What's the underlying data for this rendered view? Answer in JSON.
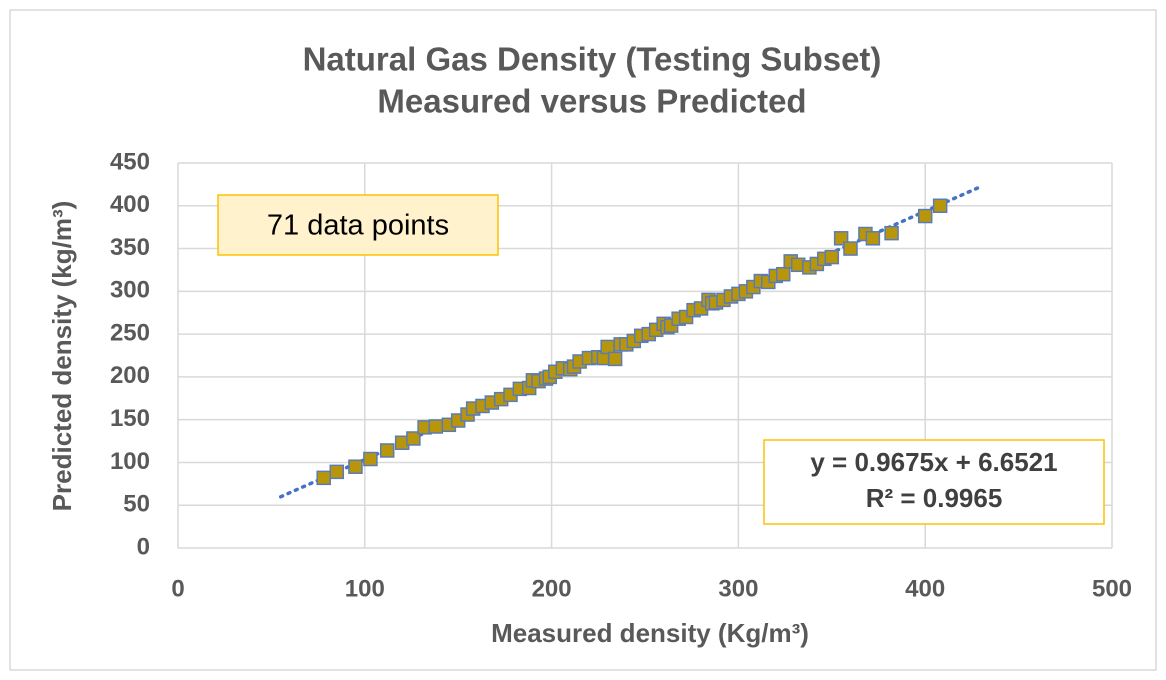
{
  "chart_data": {
    "type": "scatter",
    "title": [
      "Natural Gas Density (Testing Subset)",
      "Measured versus Predicted"
    ],
    "x_label": "Measured density (Kg/m³)",
    "y_label": "Predicted density (kg/m³)",
    "annotations": [
      "71 data points",
      "y = 0.9675x + 6.6521",
      "R² = 0.9965"
    ],
    "xlim": [
      0,
      500
    ],
    "xticks": [
      0,
      100,
      200,
      300,
      400,
      500
    ],
    "ylim": [
      0,
      450
    ],
    "yticks": [
      0,
      50,
      100,
      150,
      200,
      250,
      300,
      350,
      400,
      450
    ],
    "grid": true,
    "series": [
      {
        "color": "#b8960c",
        "edge_color": "#5a7bb5",
        "x": [
          78,
          85,
          95,
          103,
          112,
          120,
          126,
          132,
          138,
          145,
          150,
          155,
          158,
          163,
          168,
          173,
          178,
          183,
          188,
          190,
          193,
          197,
          199,
          202,
          206,
          210,
          212,
          215,
          220,
          225,
          228,
          230,
          234,
          237,
          240,
          244,
          248,
          252,
          256,
          260,
          262,
          264,
          268,
          272,
          276,
          280,
          284,
          286,
          288,
          292,
          296,
          300,
          304,
          308,
          312,
          316,
          320,
          324,
          328,
          332,
          338,
          342,
          346,
          350,
          355,
          360,
          368,
          372,
          382,
          400,
          408
        ],
        "values": [
          82,
          89,
          95,
          104,
          114,
          123,
          128,
          141,
          142,
          144,
          149,
          156,
          163,
          166,
          170,
          174,
          179,
          186,
          187,
          196,
          195,
          198,
          200,
          206,
          210,
          209,
          212,
          218,
          222,
          223,
          222,
          235,
          221,
          238,
          238,
          242,
          248,
          250,
          255,
          262,
          258,
          260,
          268,
          270,
          278,
          280,
          290,
          286,
          287,
          290,
          294,
          297,
          300,
          305,
          312,
          311,
          318,
          320,
          335,
          331,
          328,
          332,
          338,
          340,
          362,
          350,
          367,
          362,
          368,
          388,
          400
        ]
      }
    ],
    "trendline": {
      "color": "#4472c4",
      "x": [
        55,
        428
      ],
      "y": [
        59.9,
        420.7
      ]
    }
  }
}
